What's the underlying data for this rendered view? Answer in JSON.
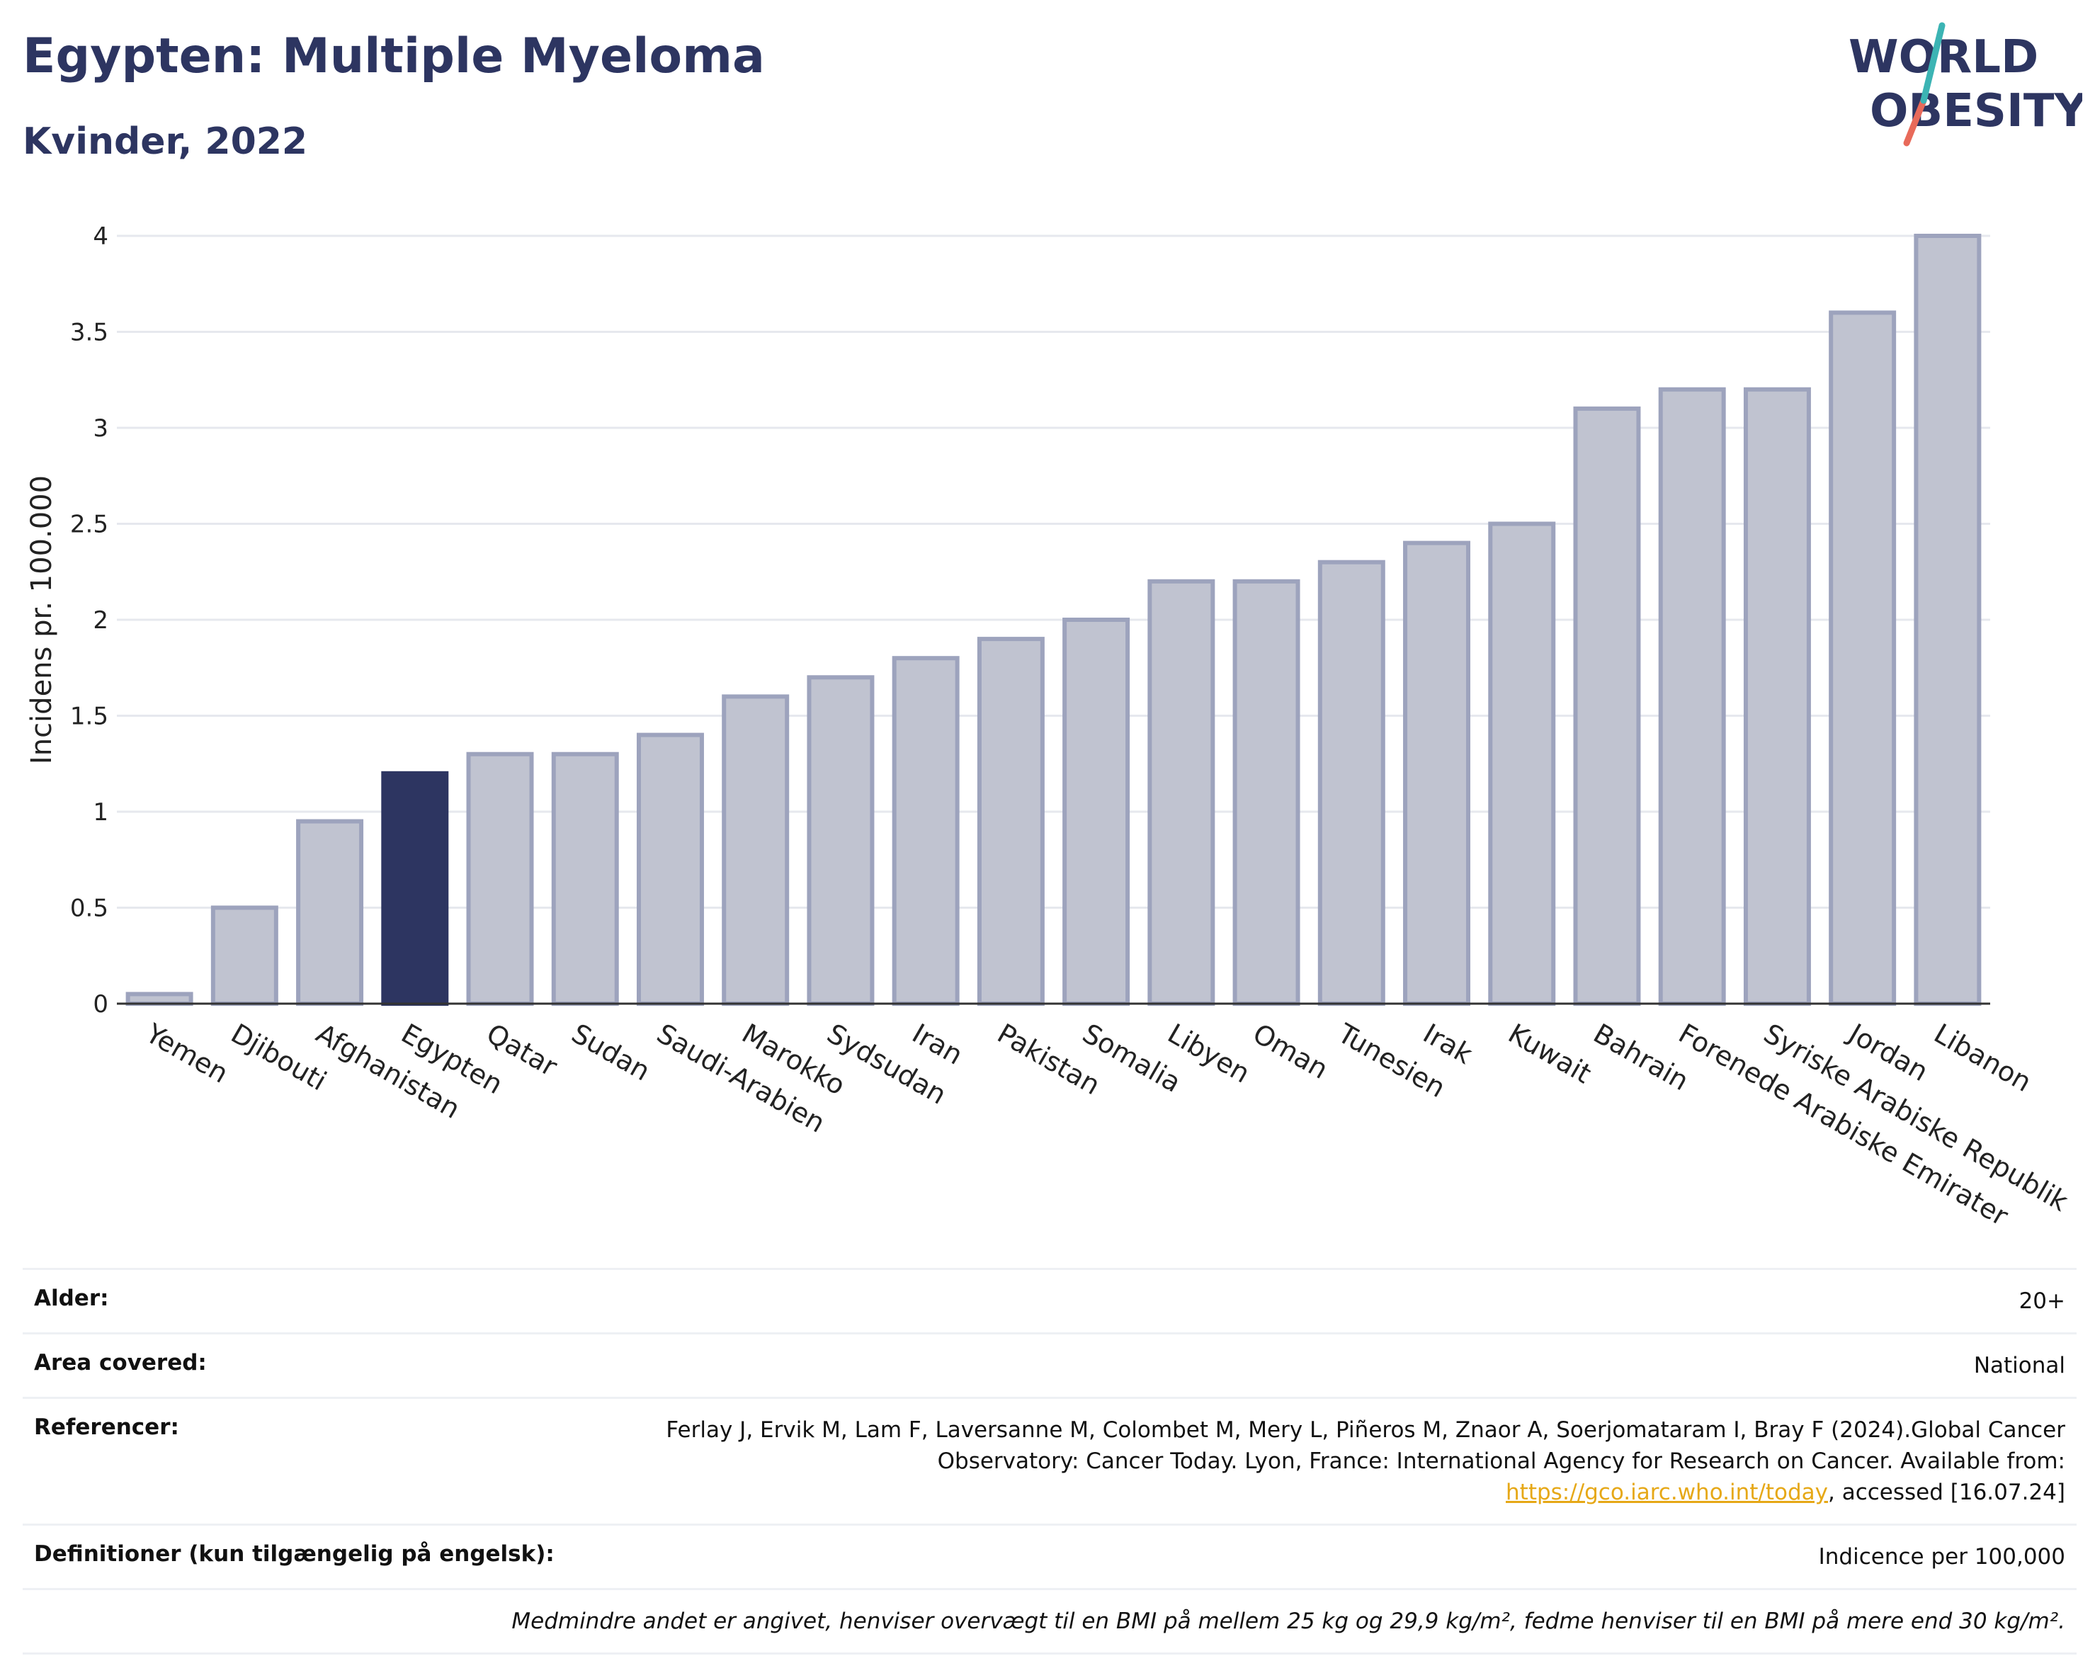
{
  "title": "Egypten: Multiple Myeloma",
  "subtitle": "Kvinder, 2022",
  "logo": {
    "line1": "WORLD",
    "line2": "OBESITY"
  },
  "colors": {
    "highlight": "#2d3561",
    "bar_fill": "#c0c3d0",
    "bar_stroke": "#9da3bd",
    "link": "#e6a817"
  },
  "chart_data": {
    "type": "bar",
    "ylabel": "Incidens pr. 100.000",
    "ylim": [
      0,
      4
    ],
    "yticks": [
      0,
      0.5,
      1,
      1.5,
      2,
      2.5,
      3,
      3.5,
      4
    ],
    "ytick_labels": [
      "0",
      "0.5",
      "1",
      "1.5",
      "2",
      "2.5",
      "3",
      "3.5",
      "4"
    ],
    "grid": true,
    "highlight": "Egypten",
    "categories": [
      "Yemen",
      "Djibouti",
      "Afghanistan",
      "Egypten",
      "Qatar",
      "Sudan",
      "Saudi-Arabien",
      "Marokko",
      "Sydsudan",
      "Iran",
      "Pakistan",
      "Somalia",
      "Libyen",
      "Oman",
      "Tunesien",
      "Irak",
      "Kuwait",
      "Bahrain",
      "Forenede Arabiske Emirater",
      "Syriske Arabiske Republik",
      "Jordan",
      "Libanon"
    ],
    "values": [
      0.05,
      0.5,
      0.95,
      1.2,
      1.3,
      1.3,
      1.4,
      1.6,
      1.7,
      1.8,
      1.9,
      2.0,
      2.2,
      2.2,
      2.3,
      2.4,
      2.5,
      3.1,
      3.2,
      3.2,
      3.6,
      4.0
    ]
  },
  "meta": [
    {
      "key": "Alder:",
      "value": "20+"
    },
    {
      "key": "Area covered:",
      "value": "National"
    },
    {
      "key": "Referencer:",
      "value_pre": "Ferlay J, Ervik M, Lam F, Laversanne M, Colombet M, Mery L, Piñeros M, Znaor A, Soerjomataram I, Bray F (2024).Global Cancer Observatory: Cancer Today. Lyon, France: International Agency for Research on Cancer. Available from: ",
      "link": "https://gco.iarc.who.int/today",
      "value_post": ", accessed [16.07.24]"
    },
    {
      "key": "Definitioner (kun tilgængelig på engelsk):",
      "value": "Indicence per 100,000"
    }
  ],
  "note": "Medmindre andet er angivet, henviser overvægt til en BMI på mellem 25 kg og 29,9 kg/m², fedme henviser til en BMI på mere end 30 kg/m²."
}
